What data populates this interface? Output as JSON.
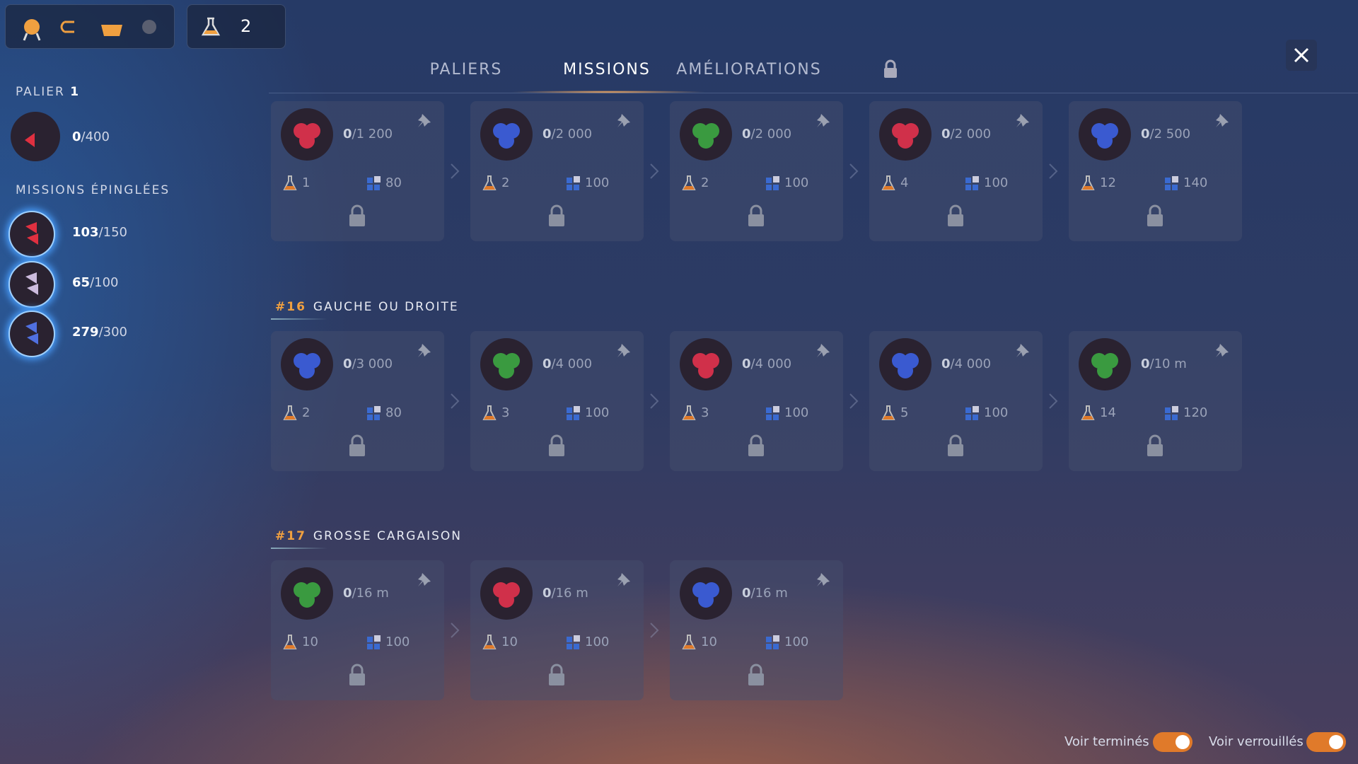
{
  "toolbar": {
    "research_count": "2"
  },
  "tabs": [
    "PALIERS",
    "MISSIONS",
    "AMÉLIORATIONS"
  ],
  "sidebar": {
    "tier_label": "PALIER",
    "tier_number": "1",
    "tier_progress": "0",
    "tier_goal": "/400",
    "pinned_title": "MISSIONS ÉPINGLÉES",
    "pinned": [
      {
        "progress": "103",
        "goal": "/150"
      },
      {
        "progress": "65",
        "goal": "/100"
      },
      {
        "progress": "279",
        "goal": "/300"
      }
    ]
  },
  "groups": [
    {
      "missions": [
        {
          "progress": "0",
          "goal": "/1 200",
          "research": "1",
          "chunks": "80"
        },
        {
          "progress": "0",
          "goal": "/2 000",
          "research": "2",
          "chunks": "100"
        },
        {
          "progress": "0",
          "goal": "/2 000",
          "research": "2",
          "chunks": "100"
        },
        {
          "progress": "0",
          "goal": "/2 000",
          "research": "4",
          "chunks": "100"
        },
        {
          "progress": "0",
          "goal": "/2 500",
          "research": "12",
          "chunks": "140"
        }
      ]
    },
    {
      "number": "#16",
      "title": "GAUCHE OU DROITE",
      "missions": [
        {
          "progress": "0",
          "goal": "/3 000",
          "research": "2",
          "chunks": "80"
        },
        {
          "progress": "0",
          "goal": "/4 000",
          "research": "3",
          "chunks": "100"
        },
        {
          "progress": "0",
          "goal": "/4 000",
          "research": "3",
          "chunks": "100"
        },
        {
          "progress": "0",
          "goal": "/4 000",
          "research": "5",
          "chunks": "100"
        },
        {
          "progress": "0",
          "goal": "/10 m",
          "research": "14",
          "chunks": "120"
        }
      ]
    },
    {
      "number": "#17",
      "title": "GROSSE CARGAISON",
      "missions": [
        {
          "progress": "0",
          "goal": "/16 m",
          "research": "10",
          "chunks": "100"
        },
        {
          "progress": "0",
          "goal": "/16 m",
          "research": "10",
          "chunks": "100"
        },
        {
          "progress": "0",
          "goal": "/16 m",
          "research": "10",
          "chunks": "100"
        }
      ]
    }
  ],
  "toggles": [
    "Voir terminés",
    "Voir verrouillés"
  ]
}
